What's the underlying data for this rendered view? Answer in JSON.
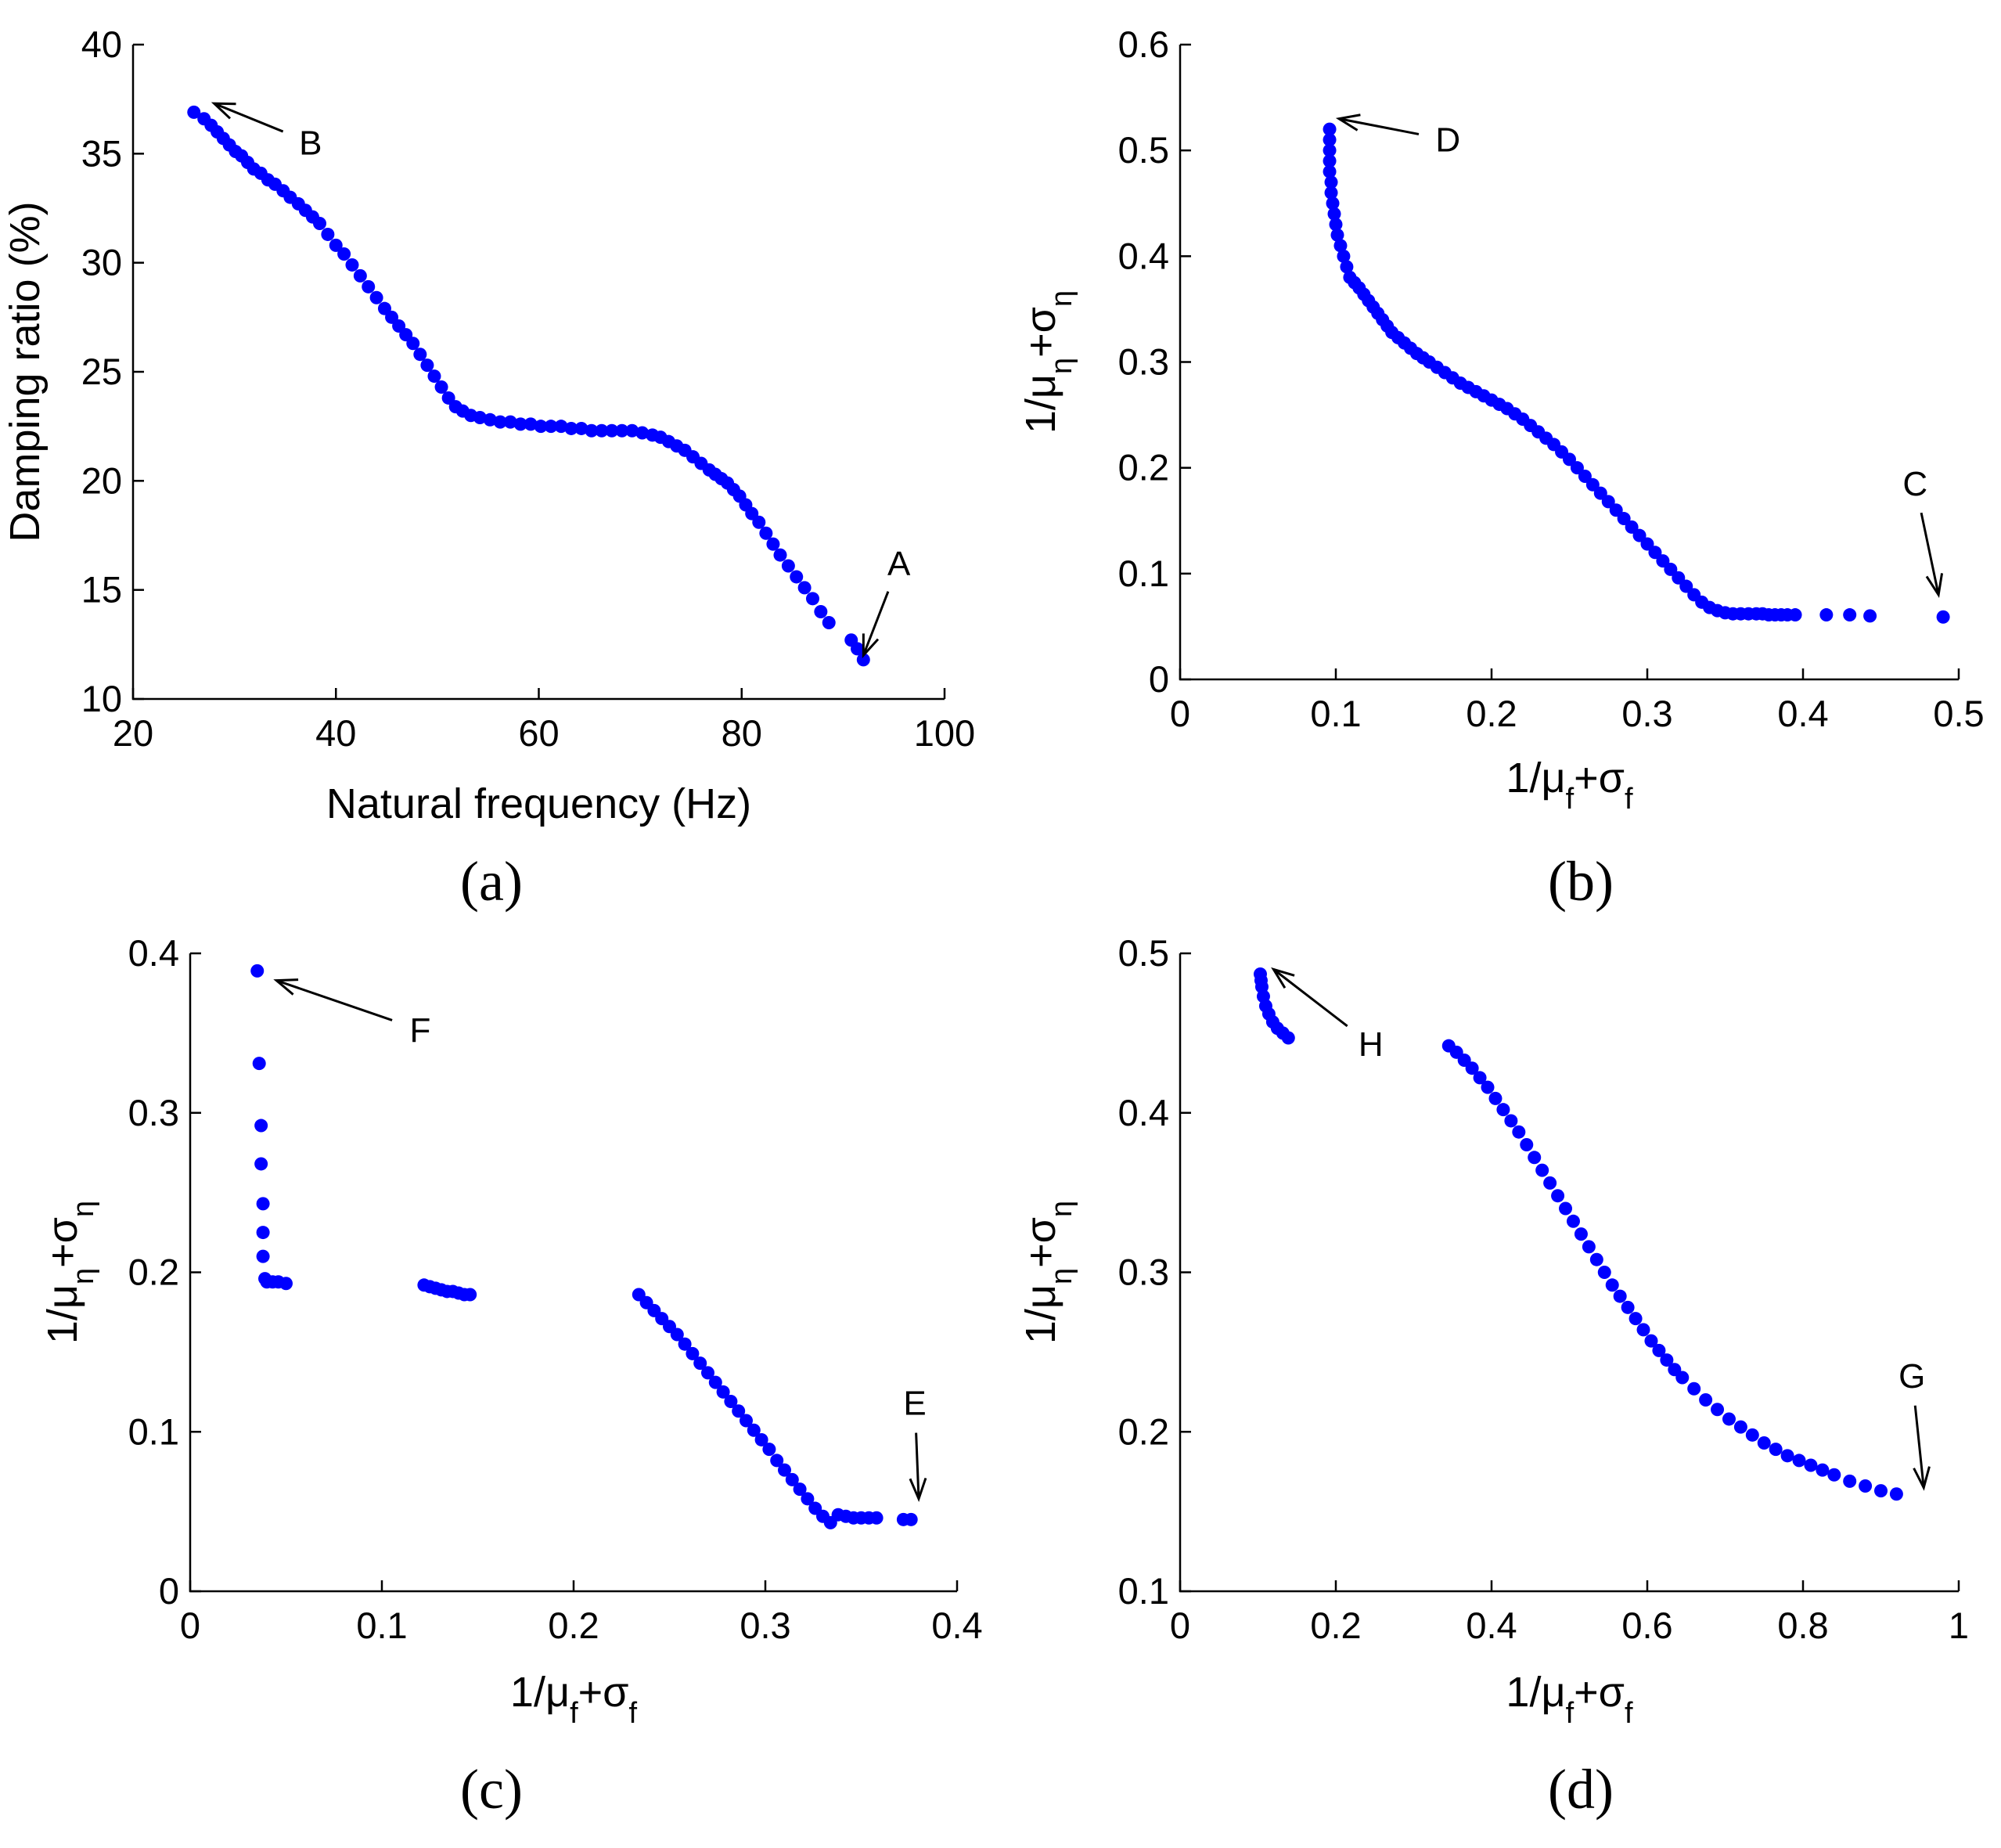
{
  "colors": {
    "points": "#0000ff",
    "axes": "#000000"
  },
  "chart_data": [
    {
      "id": "a",
      "type": "scatter",
      "panel_label": "(a)",
      "xlabel": "Natural frequency (Hz)",
      "ylabel": "Damping ratio (%)",
      "xlim": [
        20,
        100
      ],
      "ylim": [
        10,
        40
      ],
      "xticks": [
        "20",
        "40",
        "60",
        "80",
        "100"
      ],
      "yticks": [
        "10",
        "15",
        "20",
        "25",
        "30",
        "35",
        "40"
      ],
      "annotations": [
        {
          "label": "A",
          "point": [
            92,
            12
          ],
          "text_at": [
            95.5,
            16.2
          ]
        },
        {
          "label": "B",
          "point": [
            28,
            37.3
          ],
          "text_at": [
            37.5,
            35.5
          ]
        }
      ],
      "x": [
        26,
        27,
        27.7,
        28.3,
        28.9,
        29.5,
        30.1,
        30.7,
        31.3,
        31.9,
        32.6,
        33.3,
        34,
        34.8,
        35.5,
        36.3,
        37,
        37.7,
        38.4,
        39.2,
        40,
        40.8,
        41.6,
        42.4,
        43.2,
        44,
        44.8,
        45.5,
        46.2,
        46.9,
        47.6,
        48.3,
        49,
        49.7,
        50.4,
        51.1,
        51.8,
        52.5,
        53.3,
        54.2,
        55.2,
        56.2,
        57.2,
        58.2,
        59.2,
        60.2,
        61.2,
        62.2,
        63.2,
        64.2,
        65.2,
        66.2,
        67.2,
        68.2,
        69.2,
        70.2,
        71.2,
        72,
        72.8,
        73.6,
        74.4,
        75.2,
        76,
        76.8,
        77.4,
        78,
        78.6,
        79.2,
        79.8,
        80.4,
        81,
        81.7,
        82.4,
        83.1,
        83.8,
        84.6,
        85.4,
        86.2,
        87,
        87.8,
        88.6,
        90.8,
        91.4,
        92
      ],
      "y": [
        36.9,
        36.6,
        36.3,
        36,
        35.7,
        35.4,
        35.1,
        34.9,
        34.6,
        34.3,
        34.1,
        33.8,
        33.6,
        33.3,
        33,
        32.7,
        32.4,
        32.1,
        31.8,
        31.3,
        30.8,
        30.4,
        29.9,
        29.4,
        28.9,
        28.4,
        27.9,
        27.5,
        27.1,
        26.7,
        26.3,
        25.8,
        25.3,
        24.8,
        24.3,
        23.8,
        23.4,
        23.2,
        23,
        22.9,
        22.8,
        22.7,
        22.7,
        22.6,
        22.6,
        22.5,
        22.5,
        22.5,
        22.4,
        22.4,
        22.3,
        22.3,
        22.3,
        22.3,
        22.3,
        22.2,
        22.1,
        22,
        21.8,
        21.6,
        21.4,
        21.1,
        20.8,
        20.5,
        20.3,
        20.1,
        19.9,
        19.6,
        19.3,
        18.9,
        18.5,
        18.1,
        17.6,
        17.1,
        16.6,
        16.1,
        15.6,
        15.1,
        14.6,
        14,
        13.5,
        12.7,
        12.3,
        11.8
      ]
    },
    {
      "id": "b",
      "type": "scatter",
      "panel_label": "(b)",
      "xlabel": "1/μf+σf",
      "ylabel": "1/μη+ση",
      "xlim": [
        0,
        0.5
      ],
      "ylim": [
        0,
        0.6
      ],
      "xticks": [
        "0",
        "0.1",
        "0.2",
        "0.3",
        "0.4",
        "0.5"
      ],
      "yticks": [
        "0",
        "0.1",
        "0.2",
        "0.3",
        "0.4",
        "0.5",
        "0.6"
      ],
      "annotations": [
        {
          "label": "C",
          "point": [
            0.487,
            0.08
          ],
          "text_at": [
            0.472,
            0.185
          ]
        },
        {
          "label": "D",
          "point": [
            0.102,
            0.53
          ],
          "text_at": [
            0.172,
            0.51
          ]
        }
      ],
      "x": [
        0.096,
        0.096,
        0.096,
        0.096,
        0.096,
        0.097,
        0.097,
        0.098,
        0.099,
        0.1,
        0.101,
        0.103,
        0.105,
        0.107,
        0.109,
        0.112,
        0.115,
        0.118,
        0.121,
        0.124,
        0.127,
        0.13,
        0.133,
        0.136,
        0.14,
        0.144,
        0.148,
        0.152,
        0.156,
        0.16,
        0.165,
        0.17,
        0.175,
        0.18,
        0.185,
        0.19,
        0.195,
        0.2,
        0.205,
        0.21,
        0.215,
        0.22,
        0.225,
        0.23,
        0.235,
        0.24,
        0.245,
        0.25,
        0.255,
        0.26,
        0.265,
        0.27,
        0.275,
        0.28,
        0.285,
        0.29,
        0.295,
        0.3,
        0.305,
        0.31,
        0.315,
        0.32,
        0.325,
        0.33,
        0.335,
        0.34,
        0.345,
        0.35,
        0.355,
        0.36,
        0.365,
        0.37,
        0.374,
        0.378,
        0.382,
        0.386,
        0.39,
        0.395,
        0.415,
        0.43,
        0.443,
        0.49
      ],
      "y": [
        0.52,
        0.51,
        0.5,
        0.49,
        0.48,
        0.47,
        0.46,
        0.45,
        0.44,
        0.43,
        0.42,
        0.41,
        0.4,
        0.39,
        0.38,
        0.375,
        0.37,
        0.364,
        0.358,
        0.352,
        0.346,
        0.34,
        0.334,
        0.328,
        0.323,
        0.318,
        0.313,
        0.308,
        0.304,
        0.3,
        0.295,
        0.29,
        0.285,
        0.28,
        0.276,
        0.272,
        0.268,
        0.264,
        0.26,
        0.256,
        0.251,
        0.246,
        0.24,
        0.234,
        0.228,
        0.222,
        0.215,
        0.208,
        0.2,
        0.192,
        0.184,
        0.176,
        0.168,
        0.16,
        0.152,
        0.144,
        0.136,
        0.128,
        0.12,
        0.112,
        0.104,
        0.096,
        0.088,
        0.08,
        0.073,
        0.068,
        0.065,
        0.063,
        0.062,
        0.062,
        0.062,
        0.062,
        0.062,
        0.061,
        0.061,
        0.061,
        0.061,
        0.061,
        0.061,
        0.061,
        0.06,
        0.059
      ]
    },
    {
      "id": "c",
      "type": "scatter",
      "panel_label": "(c)",
      "xlabel": "1/μf+σf",
      "ylabel": "1/μη+ση",
      "xlim": [
        0,
        0.4
      ],
      "ylim": [
        0,
        0.4
      ],
      "xticks": [
        "0",
        "0.1",
        "0.2",
        "0.3",
        "0.4"
      ],
      "yticks": [
        "0",
        "0.1",
        "0.2",
        "0.3",
        "0.4"
      ],
      "annotations": [
        {
          "label": "E",
          "point": [
            0.38,
            0.058
          ],
          "text_at": [
            0.378,
            0.118
          ]
        },
        {
          "label": "F",
          "point": [
            0.045,
            0.383
          ],
          "text_at": [
            0.12,
            0.352
          ]
        }
      ],
      "x": [
        0.035,
        0.036,
        0.037,
        0.037,
        0.038,
        0.038,
        0.038,
        0.039,
        0.04,
        0.043,
        0.046,
        0.05,
        0.122,
        0.125,
        0.128,
        0.131,
        0.134,
        0.137,
        0.14,
        0.143,
        0.146,
        0.234,
        0.238,
        0.242,
        0.246,
        0.25,
        0.254,
        0.258,
        0.262,
        0.266,
        0.27,
        0.274,
        0.278,
        0.282,
        0.286,
        0.29,
        0.294,
        0.298,
        0.302,
        0.306,
        0.31,
        0.314,
        0.318,
        0.322,
        0.326,
        0.33,
        0.334,
        0.338,
        0.342,
        0.346,
        0.35,
        0.354,
        0.358,
        0.372,
        0.376
      ],
      "y": [
        0.389,
        0.331,
        0.292,
        0.268,
        0.243,
        0.225,
        0.21,
        0.196,
        0.194,
        0.194,
        0.194,
        0.193,
        0.192,
        0.191,
        0.19,
        0.189,
        0.188,
        0.188,
        0.187,
        0.186,
        0.186,
        0.186,
        0.181,
        0.176,
        0.171,
        0.166,
        0.161,
        0.155,
        0.149,
        0.143,
        0.137,
        0.131,
        0.125,
        0.119,
        0.113,
        0.107,
        0.101,
        0.095,
        0.089,
        0.082,
        0.076,
        0.07,
        0.064,
        0.058,
        0.052,
        0.047,
        0.043,
        0.048,
        0.047,
        0.046,
        0.046,
        0.046,
        0.046,
        0.045,
        0.045
      ]
    },
    {
      "id": "d",
      "type": "scatter",
      "panel_label": "(d)",
      "xlabel": "1/μf+σf",
      "ylabel": "1/μη+ση",
      "xlim": [
        0,
        1
      ],
      "ylim": [
        0.1,
        0.5
      ],
      "xticks": [
        "0",
        "0.2",
        "0.4",
        "0.6",
        "0.8",
        "1"
      ],
      "yticks": [
        "0.1",
        "0.2",
        "0.3",
        "0.4",
        "0.5"
      ],
      "annotations": [
        {
          "label": "G",
          "point": [
            0.955,
            0.165
          ],
          "text_at": [
            0.94,
            0.235
          ]
        },
        {
          "label": "H",
          "point": [
            0.12,
            0.49
          ],
          "text_at": [
            0.245,
            0.443
          ]
        }
      ],
      "x": [
        0.103,
        0.104,
        0.105,
        0.107,
        0.11,
        0.114,
        0.119,
        0.125,
        0.132,
        0.139,
        0.345,
        0.355,
        0.365,
        0.375,
        0.385,
        0.395,
        0.405,
        0.415,
        0.425,
        0.435,
        0.445,
        0.455,
        0.465,
        0.475,
        0.485,
        0.495,
        0.505,
        0.515,
        0.525,
        0.535,
        0.545,
        0.555,
        0.565,
        0.575,
        0.585,
        0.595,
        0.605,
        0.615,
        0.625,
        0.635,
        0.645,
        0.66,
        0.675,
        0.69,
        0.705,
        0.72,
        0.735,
        0.75,
        0.765,
        0.78,
        0.795,
        0.81,
        0.825,
        0.84,
        0.86,
        0.88,
        0.9,
        0.92
      ],
      "y": [
        0.487,
        0.483,
        0.479,
        0.473,
        0.467,
        0.462,
        0.457,
        0.453,
        0.45,
        0.447,
        0.442,
        0.438,
        0.433,
        0.428,
        0.422,
        0.416,
        0.409,
        0.402,
        0.395,
        0.388,
        0.38,
        0.372,
        0.364,
        0.356,
        0.348,
        0.34,
        0.332,
        0.324,
        0.316,
        0.308,
        0.3,
        0.292,
        0.285,
        0.278,
        0.271,
        0.264,
        0.257,
        0.251,
        0.245,
        0.239,
        0.234,
        0.227,
        0.22,
        0.214,
        0.208,
        0.203,
        0.198,
        0.193,
        0.189,
        0.185,
        0.182,
        0.179,
        0.176,
        0.173,
        0.169,
        0.166,
        0.163,
        0.161
      ]
    }
  ]
}
